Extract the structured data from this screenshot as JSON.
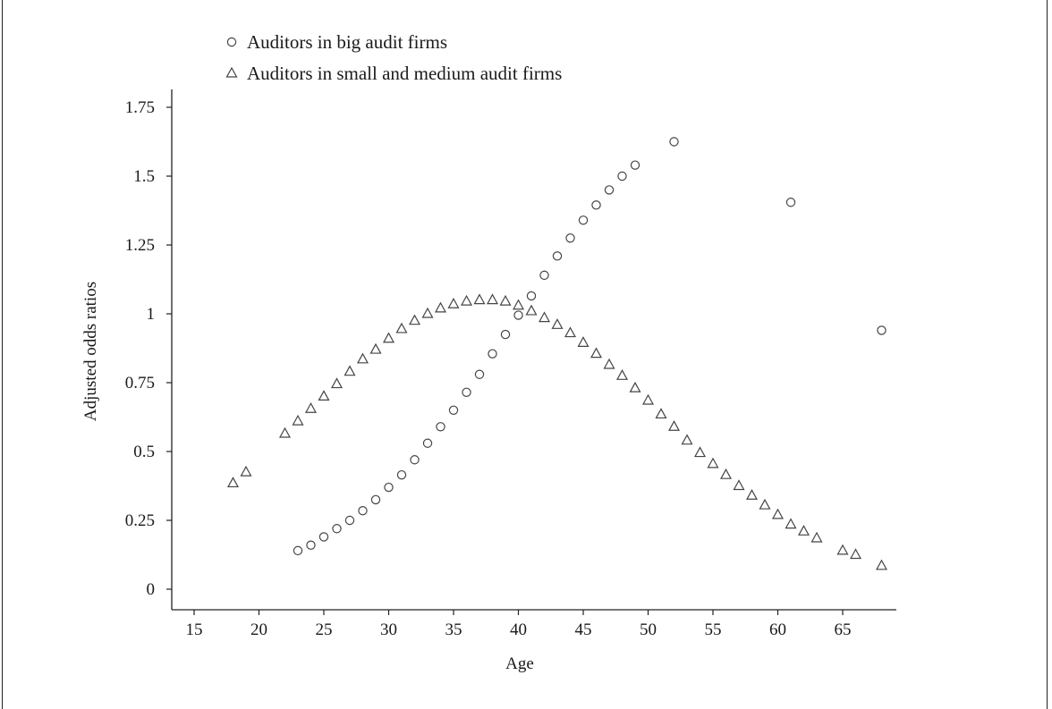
{
  "chart_data": {
    "type": "scatter",
    "title": "",
    "xlabel": "Age",
    "ylabel": "Adjusted odds ratios",
    "xlim": [
      13,
      69
    ],
    "ylim": [
      -0.03,
      1.8
    ],
    "xticks": [
      15,
      20,
      25,
      30,
      35,
      40,
      45,
      50,
      55,
      60,
      65
    ],
    "xtick_labels": [
      "15",
      "20",
      "25",
      "30",
      "35",
      "40",
      "45",
      "50",
      "55",
      "60",
      "65"
    ],
    "yticks": [
      0,
      0.25,
      0.5,
      0.75,
      1,
      1.25,
      1.5,
      1.75
    ],
    "ytick_labels": [
      "0",
      "0.25",
      "0.5",
      "0.75",
      "1",
      "1.25",
      "1.5",
      "1.75"
    ],
    "grid": false,
    "legend_position": "top-left",
    "series": [
      {
        "name": "Auditors in big audit firms",
        "marker": "circle",
        "color": "#444444",
        "x": [
          23,
          24,
          25,
          26,
          27,
          28,
          29,
          30,
          31,
          32,
          33,
          34,
          35,
          36,
          37,
          38,
          39,
          40,
          41,
          42,
          43,
          44,
          45,
          46,
          47,
          48,
          49,
          52,
          61,
          68
        ],
        "y": [
          0.14,
          0.16,
          0.19,
          0.22,
          0.25,
          0.285,
          0.325,
          0.37,
          0.415,
          0.47,
          0.53,
          0.59,
          0.65,
          0.715,
          0.78,
          0.855,
          0.925,
          0.995,
          1.065,
          1.14,
          1.21,
          1.275,
          1.34,
          1.395,
          1.45,
          1.5,
          1.54,
          1.625,
          1.405,
          0.94
        ]
      },
      {
        "name": "Auditors in small and medium audit firms",
        "marker": "triangle",
        "color": "#444444",
        "x": [
          18,
          19,
          22,
          23,
          24,
          25,
          26,
          27,
          28,
          29,
          30,
          31,
          32,
          33,
          34,
          35,
          36,
          37,
          38,
          39,
          40,
          41,
          42,
          43,
          44,
          45,
          46,
          47,
          48,
          49,
          50,
          51,
          52,
          53,
          54,
          55,
          56,
          57,
          58,
          59,
          60,
          61,
          62,
          63,
          65,
          66,
          68
        ],
        "y": [
          0.385,
          0.425,
          0.565,
          0.61,
          0.655,
          0.7,
          0.745,
          0.79,
          0.835,
          0.87,
          0.91,
          0.945,
          0.975,
          1.0,
          1.02,
          1.035,
          1.045,
          1.05,
          1.05,
          1.045,
          1.03,
          1.01,
          0.985,
          0.96,
          0.93,
          0.895,
          0.855,
          0.815,
          0.775,
          0.73,
          0.685,
          0.635,
          0.59,
          0.54,
          0.495,
          0.455,
          0.415,
          0.375,
          0.34,
          0.305,
          0.27,
          0.235,
          0.21,
          0.185,
          0.14,
          0.125,
          0.085
        ]
      }
    ]
  }
}
